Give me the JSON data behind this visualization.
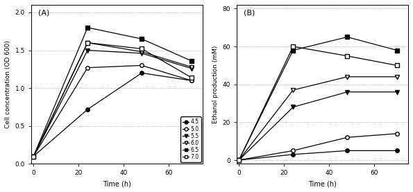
{
  "time": [
    0,
    24,
    48,
    70
  ],
  "panel_A": {
    "4.5": [
      0.1,
      0.72,
      1.2,
      1.1
    ],
    "5.0": [
      0.1,
      1.27,
      1.3,
      1.1
    ],
    "5.5": [
      0.1,
      1.5,
      1.46,
      1.26
    ],
    "6.0": [
      0.1,
      1.6,
      1.48,
      1.28
    ],
    "6.5": [
      0.1,
      1.8,
      1.65,
      1.36
    ],
    "7.0": [
      0.1,
      1.6,
      1.52,
      1.14
    ]
  },
  "panel_B": {
    "4.5": [
      0,
      3,
      5,
      5
    ],
    "5.0": [
      0,
      5,
      12,
      14
    ],
    "5.5": [
      0,
      28,
      36,
      36
    ],
    "6.0": [
      0,
      37,
      44,
      44
    ],
    "6.5": [
      0,
      58,
      65,
      58
    ],
    "7.0": [
      0,
      60,
      55,
      50
    ]
  },
  "ylim_A": [
    0.0,
    2.1
  ],
  "ylim_B": [
    -2,
    82
  ],
  "yticks_A": [
    0.0,
    0.5,
    1.0,
    1.5,
    2.0
  ],
  "yticks_B": [
    0,
    20,
    40,
    60,
    80
  ],
  "xlim": [
    -1,
    75
  ],
  "xticks": [
    0,
    20,
    40,
    60
  ],
  "xlabel": "Time (h)",
  "ylabel_A": "Cell concentration (OD 600)",
  "ylabel_B": "Ethanol production (mM)",
  "legend_labels": [
    "4.5",
    "5.0",
    "5.5",
    "6.0",
    "6.5",
    "7.0"
  ],
  "markers": [
    "o",
    "o",
    "v",
    "v",
    "s",
    "s"
  ],
  "fillstyles": [
    "full",
    "none",
    "full",
    "none",
    "full",
    "none"
  ]
}
